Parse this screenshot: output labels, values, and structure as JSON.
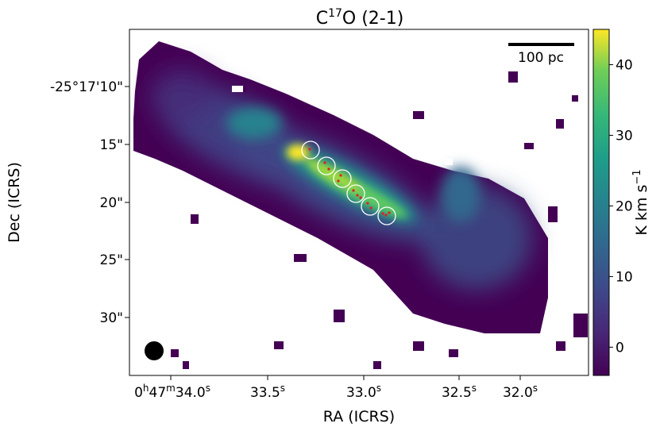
{
  "chart_data": {
    "type": "heatmap",
    "title": {
      "base": "C",
      "sup": "17",
      "rest": "O (2-1)"
    },
    "xlabel": "RA (ICRS)",
    "ylabel": "Dec (ICRS)",
    "x_ticks": [
      {
        "h": "0",
        "m": "47",
        "s": "34.0",
        "prefix": true
      },
      {
        "s": "33.5"
      },
      {
        "s": "33.0"
      },
      {
        "s": "32.5"
      },
      {
        "s": "32.0"
      }
    ],
    "y_ticks": [
      "-25°17'10\"",
      "15\"",
      "20\"",
      "25\"",
      "30\""
    ],
    "y_tick_values_arcsec": [
      10,
      15,
      20,
      25,
      30
    ],
    "colorbar": {
      "label_main": "K km s",
      "label_sup": "−1",
      "min": -4,
      "max": 45,
      "ticks": [
        "0",
        "10",
        "20",
        "30",
        "40"
      ],
      "tick_values": [
        0,
        10,
        20,
        30,
        40
      ],
      "colormap": "viridis"
    },
    "scalebar_label": "100 pc",
    "circles_count": 6,
    "colors": {
      "low": "#440154",
      "mid": "#21918c",
      "high": "#fde725",
      "circle": "#ffffff",
      "marker": "#e02020"
    }
  }
}
